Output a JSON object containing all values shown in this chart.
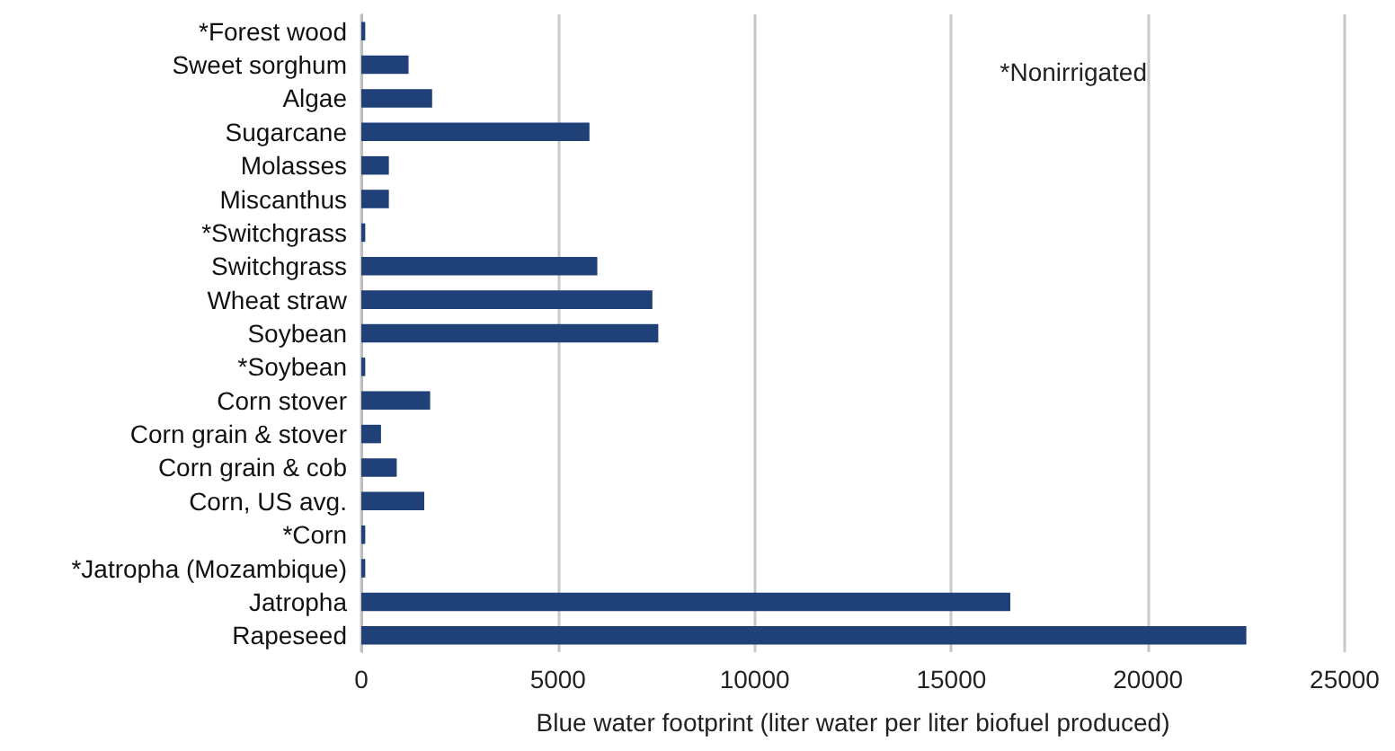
{
  "chart_data": {
    "type": "bar",
    "orientation": "horizontal",
    "categories": [
      "*Forest wood",
      "Sweet sorghum",
      "Algae",
      "Sugarcane",
      "Molasses",
      "Miscanthus",
      "*Switchgrass",
      "Switchgrass",
      "Wheat straw",
      "Soybean",
      "*Soybean",
      "Corn stover",
      "Corn grain & stover",
      "Corn grain & cob",
      "Corn, US avg.",
      "*Corn",
      "*Jatropha (Mozambique)",
      "Jatropha",
      "Rapeseed"
    ],
    "values": [
      100,
      1200,
      1800,
      5800,
      700,
      700,
      100,
      6000,
      7400,
      7550,
      100,
      1750,
      500,
      900,
      1600,
      100,
      100,
      16500,
      22500
    ],
    "color": "#1f4178",
    "xlabel": "Blue water footprint (liter water per liter biofuel produced)",
    "xlim": [
      0,
      25000
    ],
    "xticks": [
      0,
      5000,
      10000,
      15000,
      20000,
      25000
    ],
    "grid": "x",
    "annotations": [
      "*Nonirrigated"
    ]
  }
}
